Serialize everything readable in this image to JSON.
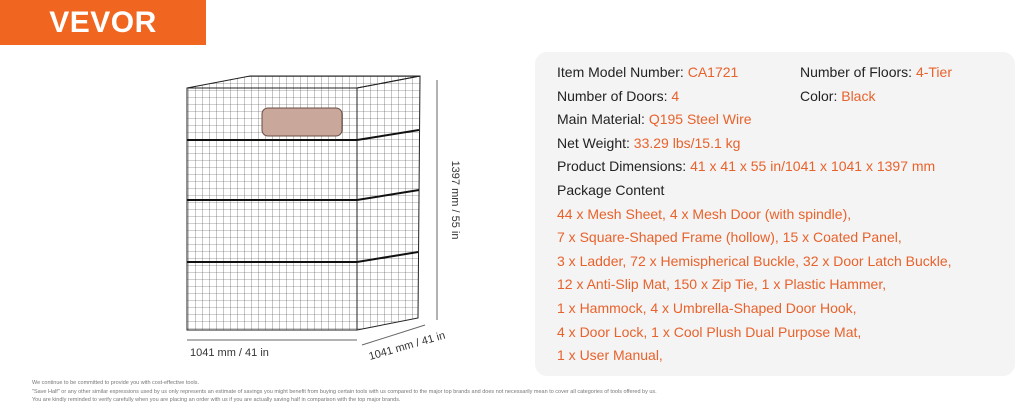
{
  "logo": "VEVOR",
  "dimensions": {
    "height": "1397 mm / 55 in",
    "width": "1041 mm / 41 in",
    "depth": "1041 mm / 41 in"
  },
  "specs": [
    [
      {
        "label": "Item Model Number: ",
        "value": "CA1721"
      },
      {
        "label": "Number of Floors: ",
        "value": "4-Tier"
      }
    ],
    [
      {
        "label": "Number of Doors: ",
        "value": "4"
      },
      {
        "label": "Color: ",
        "value": "Black"
      }
    ],
    [
      {
        "label": "Main Material: ",
        "value": "Q195 Steel Wire"
      }
    ],
    [
      {
        "label": "Net Weight: ",
        "value": "33.29 lbs/15.1 kg"
      }
    ],
    [
      {
        "label": "Product Dimensions: ",
        "value": "41 x 41 x 55 in/1041 x 1041 x 1397 mm"
      }
    ]
  ],
  "package_content": {
    "title": "Package Content",
    "lines": [
      "44 x Mesh Sheet,  4 x Mesh Door (with spindle),",
      "7 x Square-Shaped Frame (hollow),  15 x Coated Panel,",
      "3 x Ladder,  72 x Hemispherical Buckle,  32 x Door Latch Buckle,",
      "12 x Anti-Slip Mat,  150 x Zip Tie,  1 x Plastic Hammer,",
      "1 x Hammock,  4 x Umbrella-Shaped Door Hook,",
      "4 x Door Lock,  1 x Cool Plush Dual Purpose Mat,",
      "1 x User Manual,"
    ]
  },
  "disclaimer": [
    "We continue to be committed to provide you with cost-effective tools.",
    "\"Save Half\" or any other similar expressions used by us only represents an estimate of savings you might benefit from buying certain tools with us compared to the major top brands and does not necessarily mean to cover all categories of tools offered by us.",
    "You are kindly reminded to verify carefully when you are placing an order with us if you are actually saving half in comparison with the top major brands."
  ]
}
